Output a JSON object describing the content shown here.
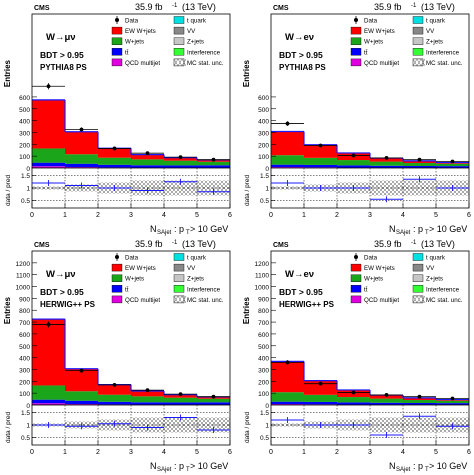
{
  "common": {
    "cms_label": "CMS",
    "lumi_label": "35.9 fb",
    "lumi_exp": "-1",
    "energy_label": "(13 TeV)",
    "ylabel": "Entries",
    "ratio_ylabel": "data / pred",
    "bdt_cut": "BDT > 0.95",
    "xlabel_main": "N",
    "xlabel_sub": "SAjet",
    "xlabel_rest": " : p",
    "xlabel_sub2": "T",
    "xlabel_tail": " > 10 GeV",
    "x_ticks": [
      "0",
      "1",
      "2",
      "3",
      "4",
      "5",
      "6"
    ],
    "ratio_ticks": [
      "0.5",
      "1",
      "1.5"
    ],
    "legend": [
      {
        "key": "data",
        "label": "Data",
        "color": "#000000"
      },
      {
        "key": "tquark",
        "label": "t quark",
        "color": "#00e0e0"
      },
      {
        "key": "ew",
        "label": "EW W+jets",
        "color": "#ff0000"
      },
      {
        "key": "vv",
        "label": "VV",
        "color": "#888888"
      },
      {
        "key": "wjets",
        "label": "W+jets",
        "color": "#1aa51a"
      },
      {
        "key": "zjets",
        "label": "Z+jets",
        "color": "#c6c6c6"
      },
      {
        "key": "ttbar",
        "label": "tt̄",
        "color": "#0000ff"
      },
      {
        "key": "interf",
        "label": "Interference",
        "color": "#33ff33"
      },
      {
        "key": "qcd",
        "label": "QCD multijet",
        "color": "#e000e0"
      },
      {
        "key": "mcunc",
        "label": "MC stat. unc.",
        "color": "#777777"
      }
    ],
    "stack_colors": {
      "qcd": "#e000e0",
      "ttbar": "#0000ff",
      "wjets": "#1aa51a",
      "ew": "#ff0000"
    }
  },
  "chart_data": [
    {
      "type": "bar",
      "channel": "W→μν",
      "shower": "PYTHIA8 PS",
      "ylim": [
        0,
        1300
      ],
      "y_ticks": [
        0,
        100,
        200,
        300,
        400,
        500,
        600
      ],
      "x": [
        0.5,
        1.5,
        2.5,
        3.5,
        4.5,
        5.5
      ],
      "series": [
        {
          "name": "QCD multijet",
          "values": [
            15,
            8,
            5,
            3,
            2,
            1
          ]
        },
        {
          "name": "tt̄",
          "values": [
            30,
            28,
            22,
            20,
            20,
            22
          ]
        },
        {
          "name": "W+jets",
          "values": [
            120,
            80,
            60,
            50,
            40,
            30
          ]
        },
        {
          "name": "EW W+jets",
          "values": [
            410,
            190,
            80,
            40,
            25,
            15
          ]
        }
      ],
      "data_points": [
        690,
        325,
        165,
        125,
        92,
        70
      ],
      "ratio": [
        1.2,
        1.1,
        1.0,
        0.9,
        1.25,
        0.85
      ]
    },
    {
      "type": "bar",
      "channel": "W→eν",
      "shower": "PYTHIA8 PS",
      "ylim": [
        0,
        1300
      ],
      "y_ticks": [
        0,
        100,
        200,
        300,
        400,
        500,
        600
      ],
      "x": [
        0.5,
        1.5,
        2.5,
        3.5,
        4.5,
        5.5
      ],
      "series": [
        {
          "name": "QCD multijet",
          "values": [
            8,
            6,
            4,
            3,
            2,
            1
          ]
        },
        {
          "name": "tt̄",
          "values": [
            20,
            20,
            18,
            16,
            15,
            15
          ]
        },
        {
          "name": "W+jets",
          "values": [
            80,
            60,
            45,
            35,
            25,
            20
          ]
        },
        {
          "name": "EW W+jets",
          "values": [
            200,
            110,
            60,
            30,
            18,
            10
          ]
        }
      ],
      "data_points": [
        375,
        190,
        105,
        85,
        70,
        55
      ],
      "ratio": [
        1.2,
        1.0,
        1.0,
        0.55,
        1.35,
        1.0
      ]
    },
    {
      "type": "bar",
      "channel": "W→μν",
      "shower": "HERWIG++ PS",
      "ylim": [
        0,
        1300
      ],
      "y_ticks": [
        0,
        100,
        200,
        300,
        400,
        500,
        600,
        700,
        800,
        900,
        1000,
        1100,
        1200
      ],
      "x": [
        0.5,
        1.5,
        2.5,
        3.5,
        4.5,
        5.5
      ],
      "series": [
        {
          "name": "QCD multijet",
          "values": [
            15,
            8,
            5,
            3,
            2,
            1
          ]
        },
        {
          "name": "tt̄",
          "values": [
            30,
            28,
            22,
            20,
            20,
            22
          ]
        },
        {
          "name": "W+jets",
          "values": [
            120,
            80,
            60,
            50,
            40,
            30
          ]
        },
        {
          "name": "EW W+jets",
          "values": [
            560,
            190,
            85,
            45,
            25,
            15
          ]
        }
      ],
      "data_points": [
        680,
        290,
        170,
        125,
        92,
        70
      ],
      "ratio": [
        1.0,
        0.95,
        1.05,
        0.9,
        1.3,
        0.8
      ]
    },
    {
      "type": "bar",
      "channel": "W→eν",
      "shower": "HERWIG++ PS",
      "ylim": [
        0,
        1300
      ],
      "y_ticks": [
        0,
        100,
        200,
        300,
        400,
        500,
        600,
        700,
        800,
        900,
        1000,
        1100,
        1200
      ],
      "x": [
        0.5,
        1.5,
        2.5,
        3.5,
        4.5,
        5.5
      ],
      "series": [
        {
          "name": "QCD multijet",
          "values": [
            8,
            6,
            4,
            3,
            2,
            1
          ]
        },
        {
          "name": "tt̄",
          "values": [
            20,
            20,
            18,
            16,
            15,
            15
          ]
        },
        {
          "name": "W+jets",
          "values": [
            80,
            60,
            45,
            35,
            25,
            20
          ]
        },
        {
          "name": "EW W+jets",
          "values": [
            260,
            120,
            60,
            30,
            18,
            10
          ]
        }
      ],
      "data_points": [
        360,
        180,
        105,
        85,
        70,
        55
      ],
      "ratio": [
        1.2,
        1.0,
        1.0,
        0.6,
        1.35,
        0.95
      ]
    }
  ]
}
